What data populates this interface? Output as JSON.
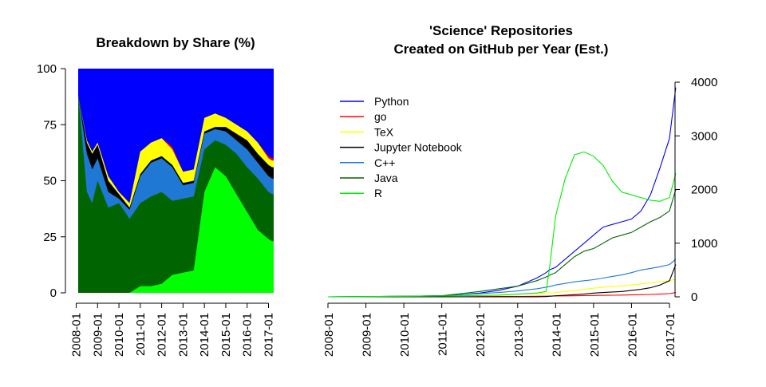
{
  "chart_data": [
    {
      "type": "area",
      "title": "Breakdown by Share (%)",
      "xlabel": "",
      "ylabel": "",
      "x_tick_labels": [
        "2008-01",
        "2009-01",
        "2010-01",
        "2011-01",
        "2012-01",
        "2013-01",
        "2014-01",
        "2015-01",
        "2016-01",
        "2017-01"
      ],
      "y_tick_labels": [
        "0",
        "25",
        "50",
        "75",
        "100"
      ],
      "ylim": [
        0,
        100
      ],
      "stack_order": [
        "R",
        "Java",
        "C++",
        "Jupyter Notebook",
        "TeX",
        "go",
        "Python"
      ],
      "x": [
        "2008-01",
        "2008-07",
        "2008-10",
        "2009-01",
        "2009-07",
        "2010-01",
        "2010-07",
        "2011-01",
        "2011-07",
        "2012-01",
        "2012-07",
        "2013-01",
        "2013-07",
        "2014-01",
        "2014-07",
        "2015-01",
        "2015-07",
        "2016-01",
        "2016-07",
        "2017-01",
        "2017-03"
      ],
      "cumulative": [
        {
          "name": "R",
          "values": [
            0,
            0,
            0,
            0,
            0,
            0,
            0,
            3,
            3,
            4,
            8,
            9,
            10,
            45,
            56,
            52,
            44,
            36,
            28,
            24,
            23
          ]
        },
        {
          "name": "Java",
          "values": [
            88,
            45,
            40,
            50,
            38,
            40,
            33,
            40,
            43,
            45,
            41,
            42,
            43,
            64,
            68,
            66,
            62,
            56,
            51,
            45,
            44
          ]
        },
        {
          "name": "C++",
          "values": [
            88,
            62,
            55,
            60,
            45,
            42,
            37,
            52,
            58,
            60,
            56,
            48,
            49,
            71,
            73,
            72,
            68,
            64,
            58,
            52,
            51
          ]
        },
        {
          "name": "Jupyter Notebook",
          "values": [
            88,
            67,
            62,
            66,
            50,
            44,
            38,
            53,
            59,
            61,
            57,
            49,
            50,
            72,
            74,
            74,
            71,
            68,
            62,
            57,
            56
          ]
        },
        {
          "name": "TeX",
          "values": [
            88,
            68,
            63,
            67,
            52,
            45,
            40,
            63,
            67,
            69,
            64,
            54,
            55,
            78,
            80,
            78,
            75,
            72,
            67,
            60,
            59
          ]
        },
        {
          "name": "go",
          "values": [
            88,
            68,
            63,
            67,
            52,
            45,
            40,
            63,
            67,
            69,
            65,
            54,
            55,
            78,
            80,
            78,
            75,
            72,
            67,
            61,
            60
          ]
        },
        {
          "name": "Python",
          "values": [
            100,
            100,
            100,
            100,
            100,
            100,
            100,
            100,
            100,
            100,
            100,
            100,
            100,
            100,
            100,
            100,
            100,
            100,
            100,
            100,
            100
          ]
        }
      ]
    },
    {
      "type": "line",
      "title": "'Science' Repositories",
      "subtitle": "Created on GitHub per Year (Est.)",
      "xlabel": "",
      "ylabel": "",
      "x_tick_labels": [
        "2008-01",
        "2009-01",
        "2010-01",
        "2011-01",
        "2012-01",
        "2013-01",
        "2014-01",
        "2015-01",
        "2016-01",
        "2017-01"
      ],
      "y_tick_labels": [
        "0",
        "1000",
        "2000",
        "3000",
        "4000"
      ],
      "ylim": [
        0,
        4000
      ],
      "y_axis_side": "right",
      "legend_position": "top-left",
      "x": [
        "2008-01",
        "2009-01",
        "2010-01",
        "2011-01",
        "2011-07",
        "2012-01",
        "2012-07",
        "2013-01",
        "2013-07",
        "2013-10",
        "2013-11",
        "2014-01",
        "2014-04",
        "2014-07",
        "2014-10",
        "2015-01",
        "2015-04",
        "2015-07",
        "2015-10",
        "2016-01",
        "2016-04",
        "2016-07",
        "2016-10",
        "2017-01",
        "2017-03"
      ],
      "series": [
        {
          "name": "Python",
          "color": "#0000ff",
          "values": [
            0,
            5,
            10,
            20,
            40,
            70,
            120,
            200,
            350,
            450,
            500,
            550,
            700,
            850,
            1000,
            1150,
            1300,
            1350,
            1400,
            1450,
            1600,
            1900,
            2400,
            2950,
            3900
          ]
        },
        {
          "name": "go",
          "color": "#ff0000",
          "values": [
            0,
            0,
            0,
            0,
            2,
            5,
            6,
            8,
            10,
            12,
            14,
            15,
            18,
            20,
            22,
            25,
            28,
            30,
            32,
            35,
            40,
            45,
            50,
            60,
            80
          ]
        },
        {
          "name": "TeX",
          "color": "#ffff00",
          "values": [
            0,
            2,
            5,
            10,
            20,
            30,
            40,
            50,
            60,
            70,
            75,
            80,
            100,
            120,
            140,
            160,
            180,
            190,
            200,
            220,
            240,
            260,
            280,
            300,
            330
          ]
        },
        {
          "name": "Jupyter Notebook",
          "color": "#000000",
          "values": [
            0,
            0,
            0,
            0,
            0,
            0,
            0,
            0,
            0,
            5,
            10,
            20,
            30,
            40,
            50,
            70,
            80,
            90,
            100,
            120,
            140,
            170,
            220,
            300,
            600
          ]
        },
        {
          "name": "C++",
          "color": "#1f78d4",
          "values": [
            0,
            5,
            10,
            20,
            40,
            60,
            80,
            110,
            150,
            180,
            190,
            220,
            250,
            280,
            300,
            320,
            350,
            380,
            410,
            450,
            500,
            530,
            560,
            600,
            700
          ]
        },
        {
          "name": "Java",
          "color": "#006400",
          "values": [
            0,
            5,
            10,
            20,
            60,
            100,
            150,
            200,
            300,
            370,
            400,
            450,
            600,
            750,
            850,
            900,
            1000,
            1100,
            1150,
            1200,
            1300,
            1400,
            1480,
            1600,
            2000
          ]
        },
        {
          "name": "R",
          "color": "#00ee00",
          "values": [
            0,
            5,
            10,
            15,
            20,
            25,
            30,
            50,
            70,
            100,
            500,
            1500,
            2200,
            2650,
            2700,
            2620,
            2450,
            2150,
            1950,
            1900,
            1850,
            1800,
            1780,
            1850,
            2300
          ]
        }
      ]
    }
  ]
}
